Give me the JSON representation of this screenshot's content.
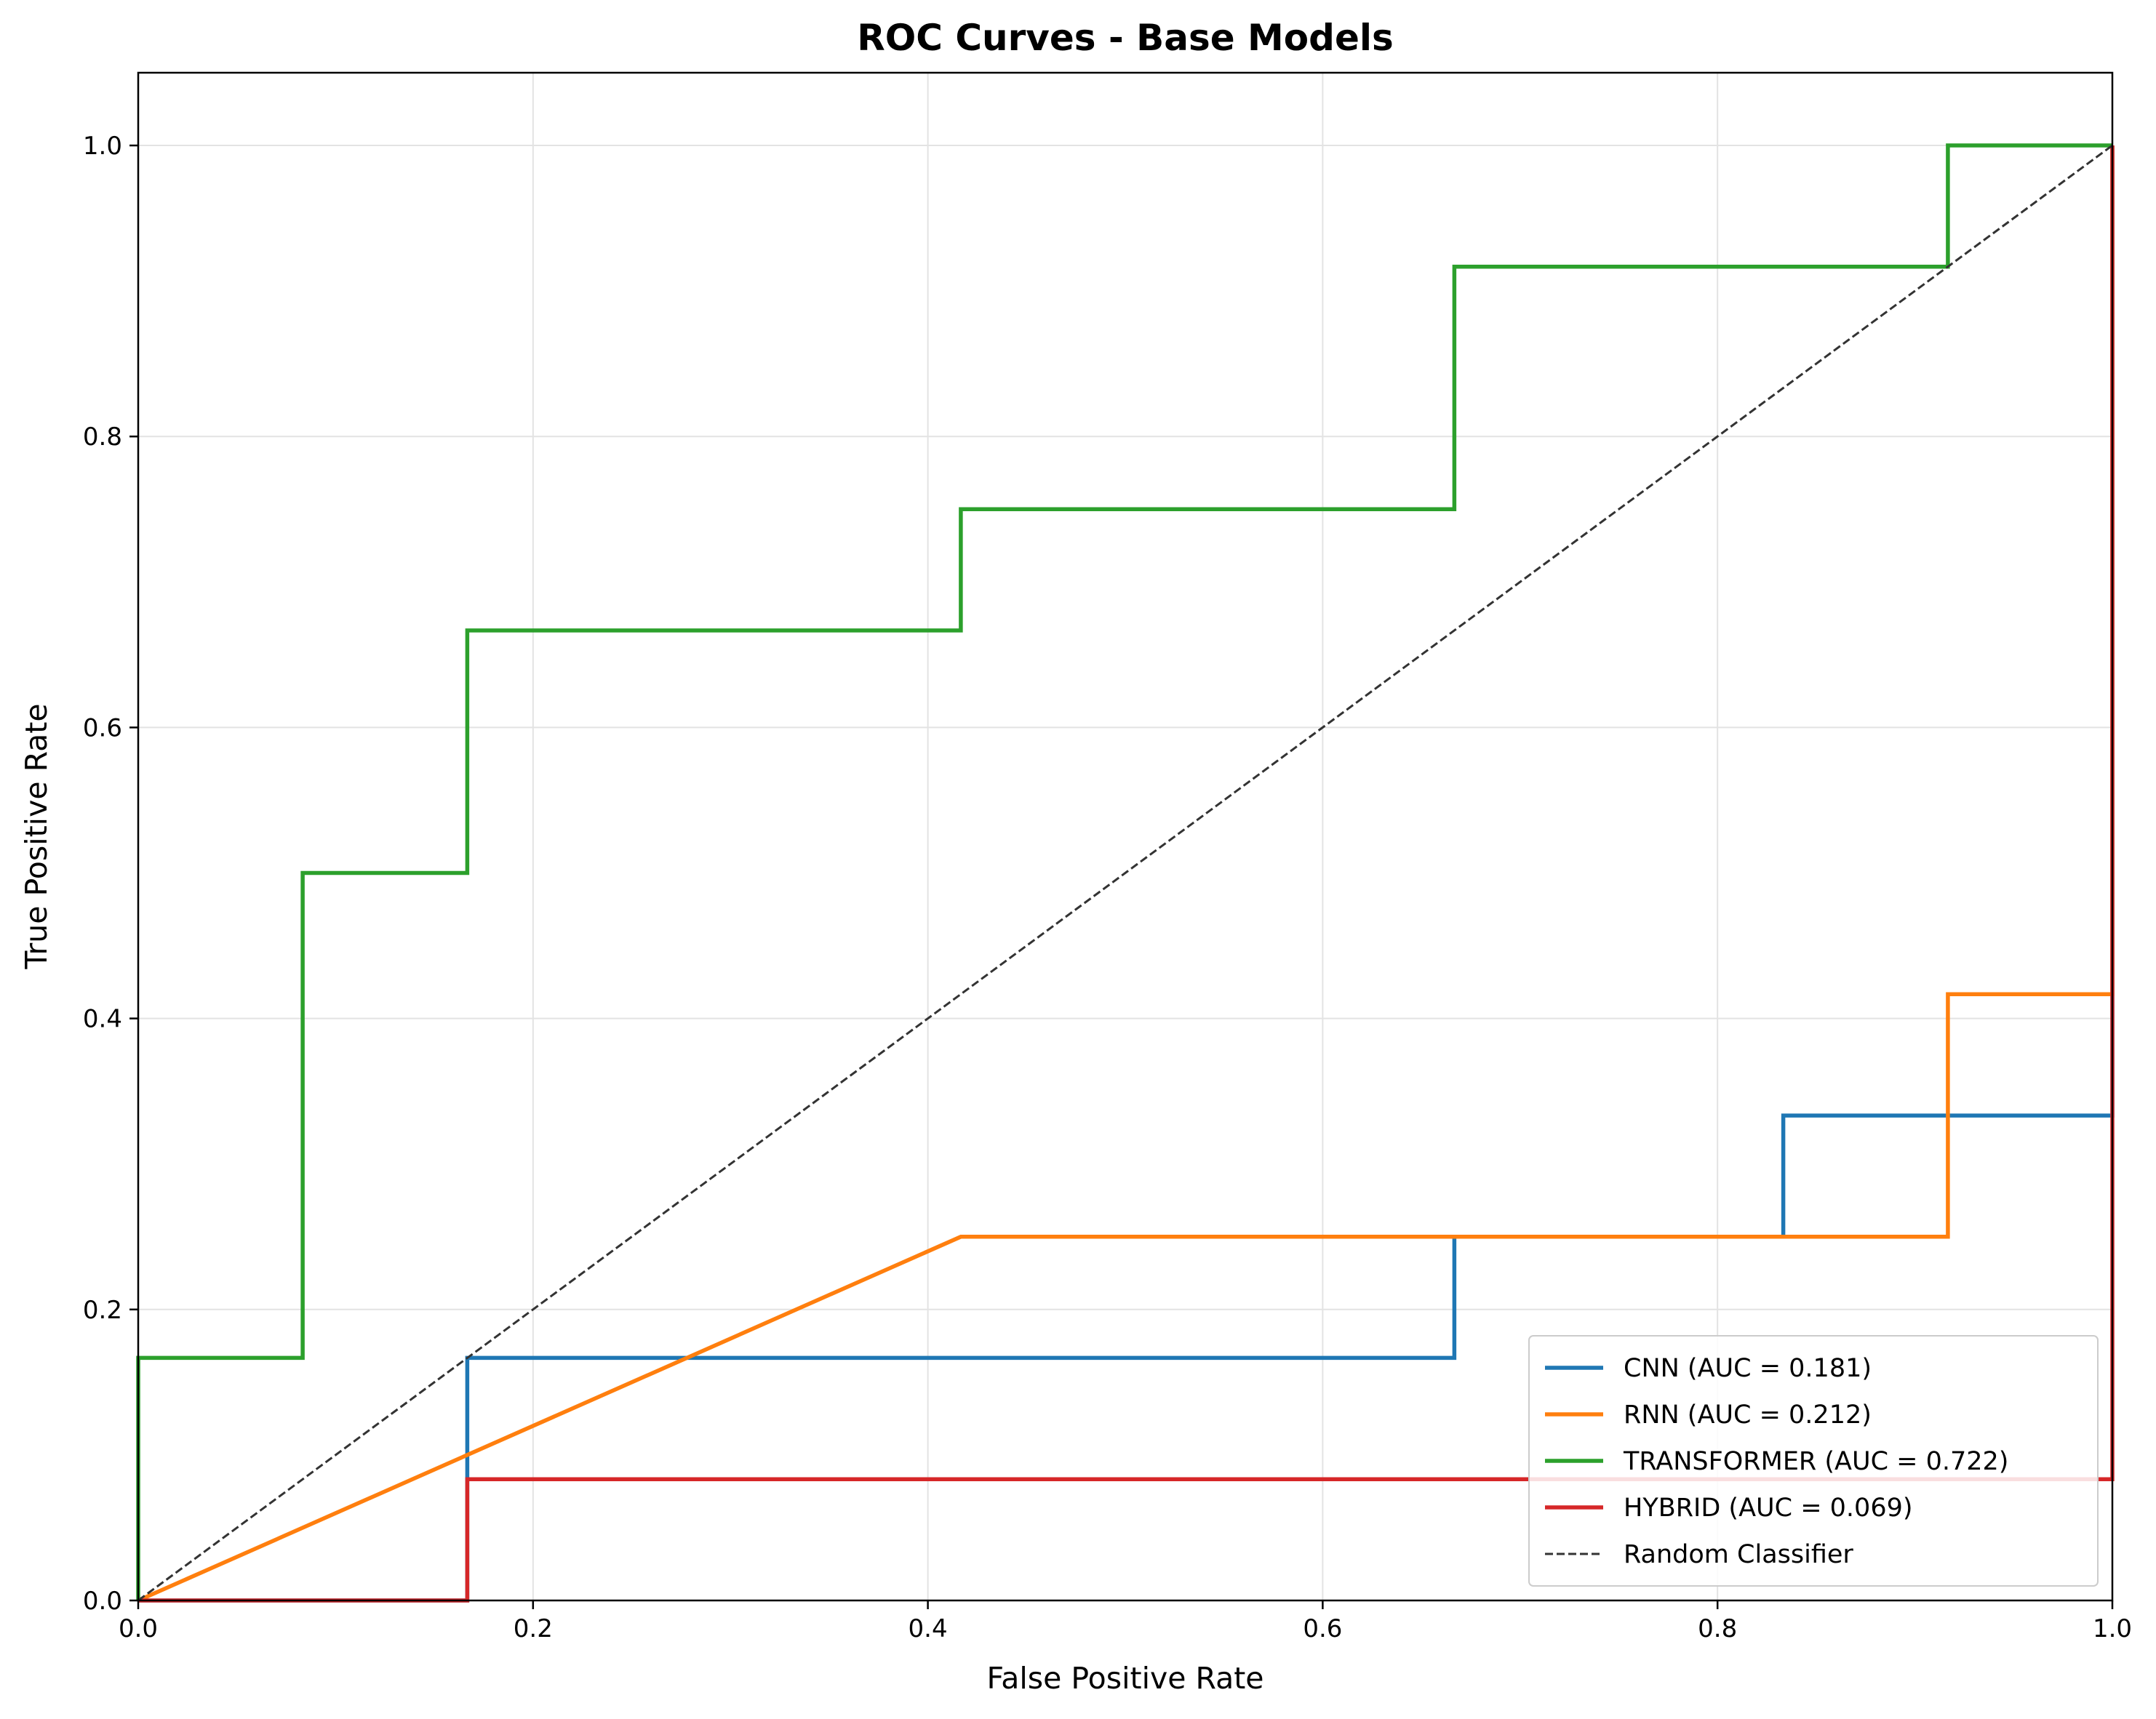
{
  "chart_data": {
    "type": "line",
    "title": "ROC Curves - Base Models",
    "xlabel": "False Positive Rate",
    "ylabel": "True Positive Rate",
    "xlim": [
      0.0,
      1.0
    ],
    "ylim": [
      0.0,
      1.05
    ],
    "xticks": [
      0.0,
      0.2,
      0.4,
      0.6,
      0.8,
      1.0
    ],
    "yticks": [
      0.0,
      0.2,
      0.4,
      0.6,
      0.8,
      1.0
    ],
    "xtick_labels": [
      "0.0",
      "0.2",
      "0.4",
      "0.6",
      "0.8",
      "1.0"
    ],
    "ytick_labels": [
      "0.0",
      "0.2",
      "0.4",
      "0.6",
      "0.8",
      "1.0"
    ],
    "grid": true,
    "legend_position": "lower-right",
    "series": [
      {
        "name": "CNN (AUC = 0.181)",
        "color": "#1f77b4",
        "style": "solid",
        "x": [
          0.0,
          0.0,
          0.1667,
          0.1667,
          0.6667,
          0.6667,
          0.8333,
          0.8333,
          1.0,
          1.0
        ],
        "y": [
          0.0,
          0.0,
          0.0,
          0.1667,
          0.1667,
          0.25,
          0.25,
          0.3333,
          0.3333,
          1.0
        ]
      },
      {
        "name": "RNN (AUC = 0.212)",
        "color": "#ff7f0e",
        "style": "solid",
        "x": [
          0.0,
          0.4167,
          0.9167,
          0.9167,
          1.0,
          1.0
        ],
        "y": [
          0.0,
          0.25,
          0.25,
          0.4167,
          0.4167,
          1.0
        ]
      },
      {
        "name": "TRANSFORMER (AUC = 0.722)",
        "color": "#2ca02c",
        "style": "solid",
        "x": [
          0.0,
          0.0,
          0.0833,
          0.0833,
          0.1667,
          0.1667,
          0.4167,
          0.4167,
          0.6667,
          0.6667,
          0.9167,
          0.9167,
          1.0
        ],
        "y": [
          0.0,
          0.1667,
          0.1667,
          0.5,
          0.5,
          0.6667,
          0.6667,
          0.75,
          0.75,
          0.9167,
          0.9167,
          1.0,
          1.0
        ]
      },
      {
        "name": "HYBRID (AUC = 0.069)",
        "color": "#d62728",
        "style": "solid",
        "x": [
          0.0,
          0.1667,
          0.1667,
          1.0,
          1.0
        ],
        "y": [
          0.0,
          0.0,
          0.0833,
          0.0833,
          1.0
        ]
      },
      {
        "name": "Random Classifier",
        "color": "#333333",
        "style": "dashed",
        "x": [
          0.0,
          1.0
        ],
        "y": [
          0.0,
          1.0
        ]
      }
    ]
  }
}
